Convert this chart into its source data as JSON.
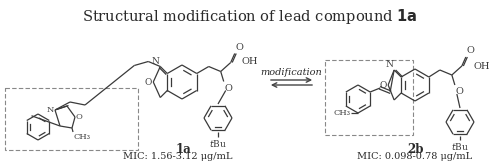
{
  "title": "Structural modification of lead compound 1a",
  "title_normal": "Structural modification of lead compound ",
  "title_bold": "1a",
  "label_1a": "1a",
  "label_2b": "2b",
  "mic_1a": "MIC: 1.56-3.12 μg/mL",
  "mic_2b": "MIC: 0.098-0.78 μg/mL",
  "modification_text": "modification",
  "bg_color": "#ffffff",
  "text_color": "#2a2a2a",
  "struct_color": "#3a3a3a",
  "dashed_color": "#888888",
  "arrow_color": "#444444",
  "fig_width": 5.0,
  "fig_height": 1.61,
  "dpi": 100
}
